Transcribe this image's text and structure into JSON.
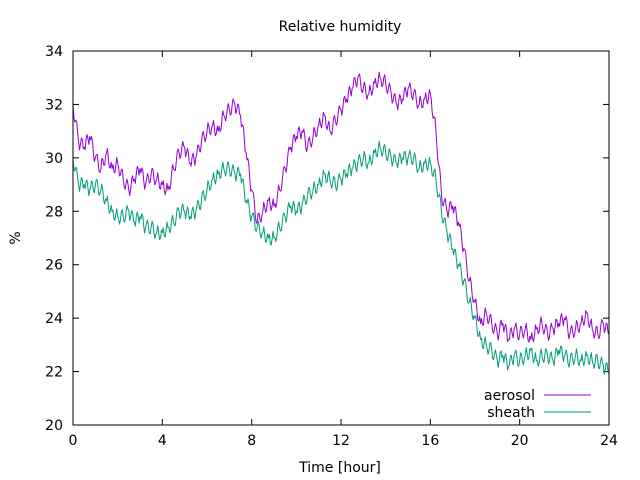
{
  "chart_data": {
    "type": "line",
    "title": "Relative humidity",
    "xlabel": "Time [hour]",
    "ylabel": "%",
    "xlim": [
      0,
      24
    ],
    "ylim": [
      20,
      34
    ],
    "xticks": [
      0,
      4,
      8,
      12,
      16,
      20,
      24
    ],
    "yticks": [
      20,
      22,
      24,
      26,
      28,
      30,
      32,
      34
    ],
    "grid": false,
    "legend_position": "bottom-right",
    "series": [
      {
        "name": "aerosol",
        "color": "#9400d3",
        "x": [
          0.0,
          0.25,
          0.5,
          0.75,
          1.0,
          1.25,
          1.5,
          1.75,
          2.0,
          2.25,
          2.5,
          2.75,
          3.0,
          3.25,
          3.5,
          3.75,
          4.0,
          4.25,
          4.5,
          4.75,
          5.0,
          5.25,
          5.5,
          5.75,
          6.0,
          6.25,
          6.5,
          6.75,
          7.0,
          7.25,
          7.5,
          7.75,
          8.0,
          8.25,
          8.5,
          8.75,
          9.0,
          9.25,
          9.5,
          9.75,
          10.0,
          10.25,
          10.5,
          10.75,
          11.0,
          11.25,
          11.5,
          11.75,
          12.0,
          12.25,
          12.5,
          12.75,
          13.0,
          13.25,
          13.5,
          13.75,
          14.0,
          14.25,
          14.5,
          14.75,
          15.0,
          15.25,
          15.5,
          15.75,
          16.0,
          16.25,
          16.5,
          16.75,
          17.0,
          17.25,
          17.5,
          17.75,
          18.0,
          18.25,
          18.5,
          18.75,
          19.0,
          19.25,
          19.5,
          19.75,
          20.0,
          20.25,
          20.5,
          20.75,
          21.0,
          21.25,
          21.5,
          21.75,
          22.0,
          22.25,
          22.5,
          22.75,
          23.0,
          23.25,
          23.5,
          23.75,
          24.0
        ],
        "values": [
          32.0,
          30.6,
          30.4,
          30.8,
          30.0,
          29.6,
          30.2,
          29.6,
          29.8,
          29.2,
          28.8,
          29.2,
          29.6,
          29.0,
          29.4,
          29.2,
          29.0,
          28.8,
          29.6,
          30.2,
          30.4,
          29.8,
          30.0,
          30.6,
          31.0,
          31.2,
          31.0,
          31.6,
          31.8,
          32.0,
          31.6,
          30.2,
          28.8,
          27.6,
          28.0,
          28.4,
          28.2,
          28.8,
          29.6,
          30.4,
          30.8,
          31.0,
          30.4,
          30.8,
          31.2,
          31.6,
          31.0,
          31.4,
          31.8,
          32.2,
          32.6,
          33.0,
          32.6,
          32.4,
          32.8,
          33.0,
          32.8,
          32.4,
          32.0,
          32.2,
          32.6,
          32.4,
          32.0,
          32.2,
          32.4,
          31.0,
          28.6,
          28.0,
          28.2,
          27.6,
          26.6,
          25.4,
          24.6,
          23.8,
          24.2,
          23.8,
          23.4,
          23.8,
          23.2,
          23.6,
          23.4,
          23.6,
          23.2,
          23.6,
          23.8,
          23.4,
          23.6,
          23.8,
          24.0,
          23.4,
          23.6,
          23.8,
          24.2,
          23.6,
          23.4,
          23.8,
          23.4
        ]
      },
      {
        "name": "sheath",
        "color": "#009e73",
        "x": [
          0.0,
          0.25,
          0.5,
          0.75,
          1.0,
          1.25,
          1.5,
          1.75,
          2.0,
          2.25,
          2.5,
          2.75,
          3.0,
          3.25,
          3.5,
          3.75,
          4.0,
          4.25,
          4.5,
          4.75,
          5.0,
          5.25,
          5.5,
          5.75,
          6.0,
          6.25,
          6.5,
          6.75,
          7.0,
          7.25,
          7.5,
          7.75,
          8.0,
          8.25,
          8.5,
          8.75,
          9.0,
          9.25,
          9.5,
          9.75,
          10.0,
          10.25,
          10.5,
          10.75,
          11.0,
          11.25,
          11.5,
          11.75,
          12.0,
          12.25,
          12.5,
          12.75,
          13.0,
          13.25,
          13.5,
          13.75,
          14.0,
          14.25,
          14.5,
          14.75,
          15.0,
          15.25,
          15.5,
          15.75,
          16.0,
          16.25,
          16.5,
          16.75,
          17.0,
          17.25,
          17.5,
          17.75,
          18.0,
          18.25,
          18.5,
          18.75,
          19.0,
          19.25,
          19.5,
          19.75,
          20.0,
          20.25,
          20.5,
          20.75,
          21.0,
          21.25,
          21.5,
          21.75,
          22.0,
          22.25,
          22.5,
          22.75,
          23.0,
          23.25,
          23.5,
          23.75,
          24.0
        ],
        "values": [
          30.0,
          29.0,
          29.0,
          28.8,
          29.0,
          28.8,
          28.4,
          28.0,
          27.8,
          27.8,
          28.0,
          27.6,
          27.8,
          27.4,
          27.4,
          27.2,
          27.2,
          27.4,
          27.6,
          28.0,
          28.0,
          27.8,
          28.0,
          28.4,
          28.8,
          29.2,
          29.4,
          29.6,
          29.6,
          29.4,
          29.4,
          28.4,
          27.8,
          27.4,
          27.2,
          27.0,
          27.0,
          27.4,
          27.8,
          28.2,
          28.0,
          28.2,
          28.6,
          28.8,
          29.0,
          29.4,
          29.2,
          29.0,
          29.2,
          29.4,
          29.6,
          29.8,
          30.0,
          29.8,
          30.2,
          30.4,
          30.2,
          30.0,
          29.8,
          30.0,
          30.0,
          30.0,
          29.6,
          29.8,
          29.8,
          29.2,
          28.0,
          27.2,
          26.6,
          26.0,
          25.4,
          24.6,
          24.0,
          23.2,
          23.0,
          22.8,
          22.4,
          22.6,
          22.2,
          22.6,
          22.4,
          22.6,
          22.8,
          22.4,
          22.6,
          22.6,
          22.4,
          22.8,
          22.6,
          22.4,
          22.6,
          22.4,
          22.6,
          22.4,
          22.4,
          22.2,
          22.0
        ]
      }
    ]
  }
}
